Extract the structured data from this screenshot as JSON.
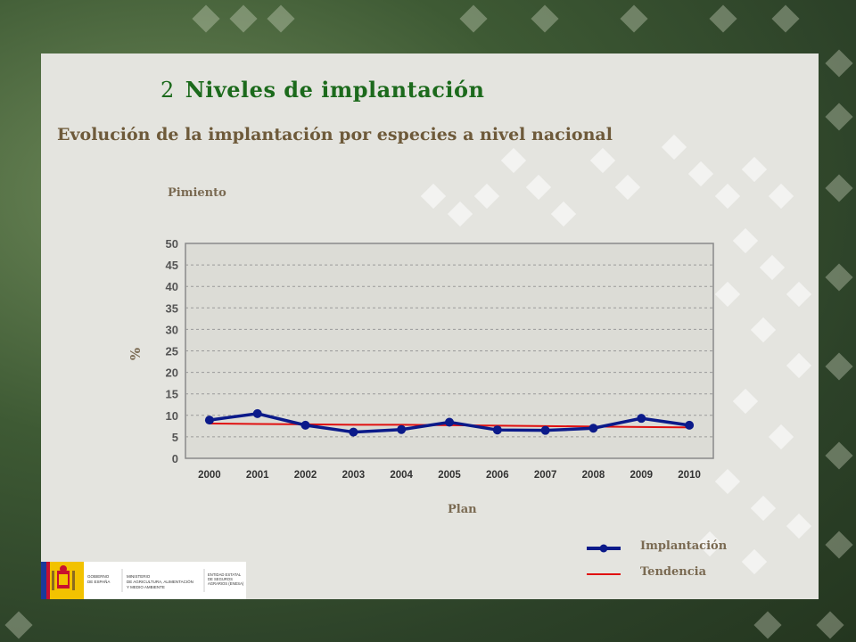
{
  "section": {
    "number": "2",
    "title": "Niveles de implantación"
  },
  "subtitle": "Evolución de la implantación por especies a nivel nacional",
  "species": "Pimiento",
  "logos": {
    "gobierno": "GOBIERNO DE ESPAÑA",
    "ministerio": "MINISTERIO DE AGRICULTURA, ALIMENTACIÓN Y MEDIO AMBIENTE",
    "entidad": "ENTIDAD ESTATAL DE SEGUROS AGRARIOS (ENESA)"
  },
  "colors": {
    "implantacion": "#0b1a8a",
    "tendencia": "#e01010",
    "title": "#1c6a1c",
    "subtitle": "#6e5a3a"
  },
  "chart_data": {
    "type": "line",
    "categories": [
      "2000",
      "2001",
      "2002",
      "2003",
      "2004",
      "2005",
      "2006",
      "2007",
      "2008",
      "2009",
      "2010"
    ],
    "series": [
      {
        "name": "Implantación",
        "values": [
          8.9,
          10.4,
          7.7,
          6.1,
          6.7,
          8.4,
          6.6,
          6.5,
          7.0,
          9.3,
          7.7
        ]
      },
      {
        "name": "Tendencia",
        "values": [
          8.1,
          8.0,
          7.9,
          7.8,
          7.8,
          7.7,
          7.6,
          7.5,
          7.4,
          7.3,
          7.2
        ]
      }
    ],
    "xlabel": "Plan",
    "ylabel": "%",
    "ylim": [
      0,
      50
    ],
    "yticks": [
      "0",
      "5",
      "10",
      "15",
      "20",
      "25",
      "30",
      "35",
      "40",
      "45",
      "50"
    ],
    "grid": true,
    "legend": [
      "Implantación",
      "Tendencia"
    ]
  }
}
